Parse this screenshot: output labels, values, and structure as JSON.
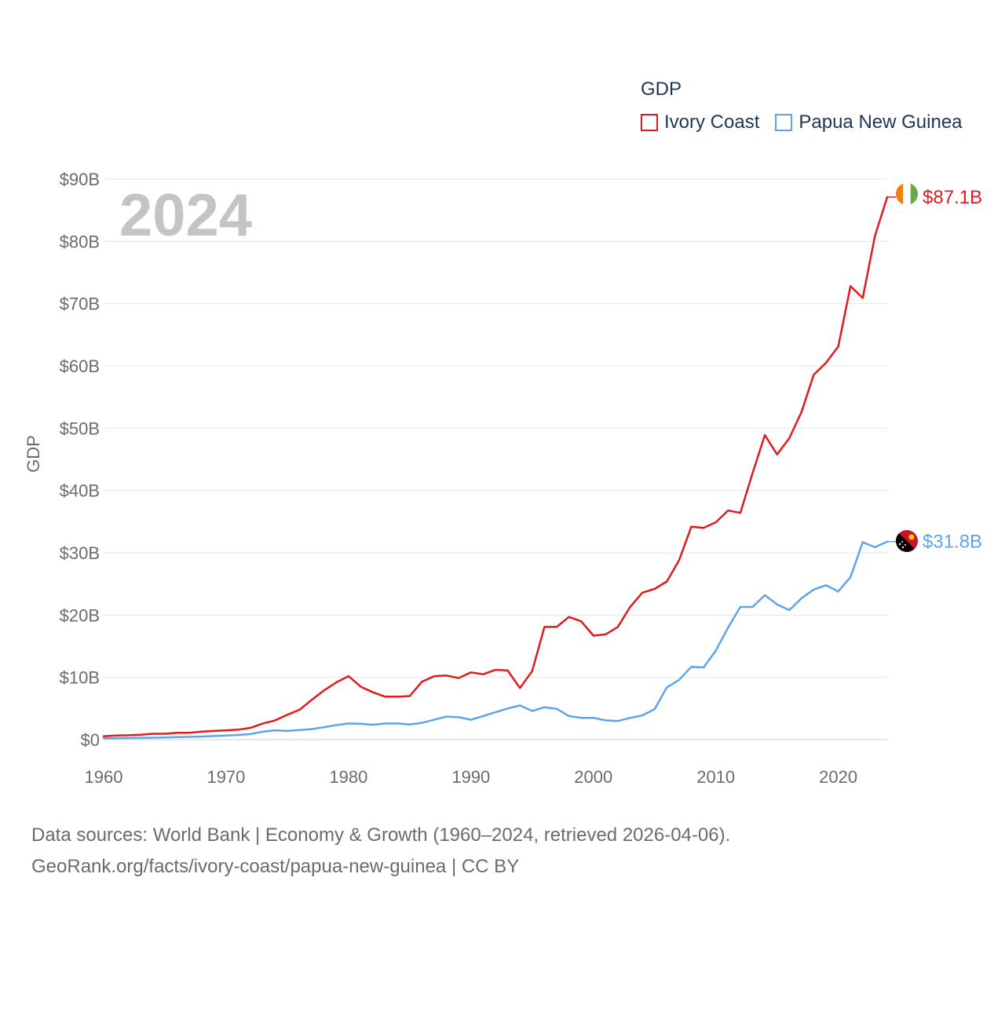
{
  "chart_data": {
    "type": "line",
    "title": "2024",
    "ylabel": "GDP",
    "xlabel": "",
    "xlim": [
      1960,
      2024
    ],
    "ylim": [
      0,
      90
    ],
    "x_ticks": [
      1960,
      1970,
      1980,
      1990,
      2000,
      2010,
      2020
    ],
    "y_ticks": [
      0,
      10,
      20,
      30,
      40,
      50,
      60,
      70,
      80,
      90
    ],
    "y_tick_labels": [
      "$0",
      "$10B",
      "$20B",
      "$30B",
      "$40B",
      "$50B",
      "$60B",
      "$70B",
      "$80B",
      "$90B"
    ],
    "legend_title": "GDP",
    "legend_position": "top-right",
    "grid": true,
    "x": [
      1960,
      1961,
      1962,
      1963,
      1964,
      1965,
      1966,
      1967,
      1968,
      1969,
      1970,
      1971,
      1972,
      1973,
      1974,
      1975,
      1976,
      1977,
      1978,
      1979,
      1980,
      1981,
      1982,
      1983,
      1984,
      1985,
      1986,
      1987,
      1988,
      1989,
      1990,
      1991,
      1992,
      1993,
      1994,
      1995,
      1996,
      1997,
      1998,
      1999,
      2000,
      2001,
      2002,
      2003,
      2004,
      2005,
      2006,
      2007,
      2008,
      2009,
      2010,
      2011,
      2012,
      2013,
      2014,
      2015,
      2016,
      2017,
      2018,
      2019,
      2020,
      2021,
      2022,
      2023,
      2024
    ],
    "series": [
      {
        "name": "Ivory Coast",
        "color": "#e31a1c",
        "end_label": "$87.1B",
        "flag": "ivory-coast-flag",
        "values": [
          0.55,
          0.65,
          0.7,
          0.8,
          0.95,
          0.95,
          1.1,
          1.1,
          1.3,
          1.4,
          1.5,
          1.6,
          1.9,
          2.6,
          3.1,
          4.0,
          4.8,
          6.4,
          7.9,
          9.2,
          10.2,
          8.5,
          7.6,
          6.9,
          6.9,
          7.0,
          9.3,
          10.2,
          10.3,
          9.9,
          10.8,
          10.5,
          11.2,
          11.1,
          8.3,
          11.0,
          18.1,
          18.1,
          19.7,
          19.0,
          16.7,
          16.9,
          18.1,
          21.3,
          23.6,
          24.2,
          25.4,
          28.8,
          34.2,
          34.0,
          34.9,
          36.8,
          36.4,
          42.8,
          48.9,
          45.8,
          48.4,
          52.6,
          58.6,
          60.5,
          63.1,
          72.8,
          70.9,
          80.9,
          87.1
        ]
      },
      {
        "name": "Papua New Guinea",
        "color": "#5ea5e8",
        "end_label": "$31.8B",
        "flag": "papua-new-guinea-flag",
        "values": [
          0.23,
          0.24,
          0.26,
          0.28,
          0.31,
          0.35,
          0.4,
          0.45,
          0.5,
          0.58,
          0.65,
          0.75,
          0.9,
          1.3,
          1.5,
          1.4,
          1.55,
          1.7,
          2.0,
          2.35,
          2.6,
          2.55,
          2.4,
          2.6,
          2.6,
          2.45,
          2.7,
          3.2,
          3.7,
          3.6,
          3.2,
          3.8,
          4.4,
          5.0,
          5.5,
          4.6,
          5.2,
          4.95,
          3.8,
          3.5,
          3.5,
          3.1,
          3.0,
          3.5,
          3.9,
          4.9,
          8.4,
          9.6,
          11.7,
          11.6,
          14.3,
          18.0,
          21.3,
          21.3,
          23.2,
          21.7,
          20.8,
          22.7,
          24.1,
          24.8,
          23.8,
          26.1,
          31.7,
          30.9,
          31.8
        ]
      }
    ]
  },
  "footer": {
    "line1": "Data sources: World Bank | Economy & Growth (1960–2024, retrieved 2026-04-06).",
    "line2": "GeoRank.org/facts/ivory-coast/papua-new-guinea | CC BY"
  }
}
